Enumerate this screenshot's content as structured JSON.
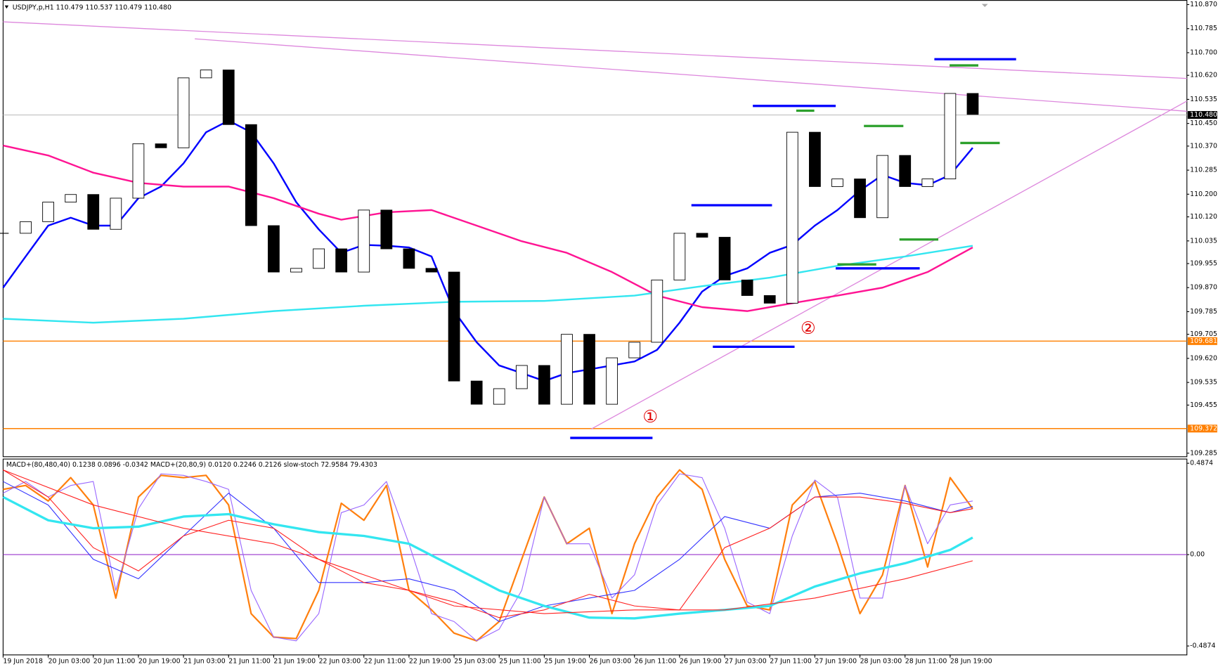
{
  "chart_data": [
    {
      "type": "candlestick",
      "title": "USDJPY,p,H1  110.479 110.537 110.479 110.480",
      "xlim": [
        0,
        210
      ],
      "xticks": [
        {
          "value": 0,
          "label": "19 Jun 2018"
        },
        {
          "value": 8,
          "label": "20 Jun 03:00"
        },
        {
          "value": 16,
          "label": "20 Jun 11:00"
        },
        {
          "value": 24,
          "label": "20 Jun 19:00"
        },
        {
          "value": 32,
          "label": "21 Jun 03:00"
        },
        {
          "value": 40,
          "label": "21 Jun 11:00"
        },
        {
          "value": 48,
          "label": "21 Jun 19:00"
        },
        {
          "value": 56,
          "label": "22 Jun 03:00"
        },
        {
          "value": 64,
          "label": "22 Jun 11:00"
        },
        {
          "value": 72,
          "label": "22 Jun 19:00"
        },
        {
          "value": 80,
          "label": "25 Jun 03:00"
        },
        {
          "value": 88,
          "label": "25 Jun 11:00"
        },
        {
          "value": 96,
          "label": "25 Jun 19:00"
        },
        {
          "value": 104,
          "label": "26 Jun 03:00"
        },
        {
          "value": 112,
          "label": "26 Jun 11:00"
        },
        {
          "value": 120,
          "label": "26 Jun 19:00"
        },
        {
          "value": 128,
          "label": "27 Jun 03:00"
        },
        {
          "value": 136,
          "label": "27 Jun 11:00"
        },
        {
          "value": 144,
          "label": "27 Jun 19:00"
        },
        {
          "value": 152,
          "label": "28 Jun 03:00"
        },
        {
          "value": 160,
          "label": "28 Jun 11:00"
        },
        {
          "value": 168,
          "label": "28 Jun 19:00"
        }
      ],
      "ylim": [
        109.274,
        110.886
      ],
      "yticks": [
        {
          "value": 110.87,
          "label": "110.870"
        },
        110.785,
        {
          "value": 110.7,
          "label": "110.700"
        },
        {
          "value": 110.62,
          "label": "110.620"
        },
        110.535,
        {
          "value": 110.45,
          "label": "110.450"
        },
        {
          "value": 110.37,
          "label": "110.370"
        },
        110.285,
        {
          "value": 110.2,
          "label": "110.200"
        },
        {
          "value": 110.12,
          "label": "110.120"
        },
        110.035,
        109.955,
        {
          "value": 109.87,
          "label": "109.870"
        },
        109.785,
        109.705,
        {
          "value": 109.62,
          "label": "109.620"
        },
        109.535,
        109.455,
        109.285
      ],
      "candle_up_color": "#ffffff",
      "candle_down_color": "#000000",
      "closes": {
        "x": [
          0,
          4,
          8,
          12,
          16,
          20,
          24,
          28,
          32,
          36,
          40,
          44,
          48,
          52,
          56,
          60,
          64,
          68,
          72,
          76,
          80,
          84,
          88,
          92,
          96,
          100,
          104,
          108,
          112,
          116,
          120,
          124,
          128,
          132,
          136,
          140,
          144,
          148,
          152,
          156,
          160,
          164,
          168,
          172
        ],
        "values": [
          110.062,
          110.103,
          110.172,
          110.199,
          110.076,
          110.186,
          110.378,
          110.364,
          110.611,
          110.639,
          110.446,
          110.089,
          109.925,
          109.938,
          110.007,
          109.925,
          110.144,
          110.007,
          109.938,
          109.925,
          109.54,
          109.458,
          109.513,
          109.595,
          109.458,
          109.705,
          109.458,
          109.622,
          109.677,
          109.897,
          110.062,
          110.048,
          109.897,
          109.842,
          109.815,
          110.419,
          110.227,
          110.254,
          110.117,
          110.337,
          110.227,
          110.254,
          110.556,
          110.482
        ]
      },
      "lines": [
        {
          "color": "#0000ff",
          "width": 2.2,
          "x": [
            0,
            4,
            8,
            12,
            16,
            20,
            24,
            28,
            32,
            36,
            40,
            44,
            48,
            52,
            56,
            60,
            64,
            68,
            72,
            76,
            80,
            84,
            88,
            92,
            96,
            100,
            104,
            108,
            112,
            116,
            120,
            124,
            128,
            132,
            136,
            140,
            144,
            148,
            152,
            156,
            160,
            164,
            168,
            172
          ],
          "values": [
            109.87,
            109.98,
            110.089,
            110.117,
            110.089,
            110.089,
            110.186,
            110.227,
            110.309,
            110.419,
            110.46,
            110.419,
            110.309,
            110.172,
            110.076,
            109.993,
            110.021,
            110.018,
            110.012,
            109.98,
            109.787,
            109.677,
            109.595,
            109.568,
            109.54,
            109.568,
            109.581,
            109.595,
            109.609,
            109.65,
            109.746,
            109.856,
            109.911,
            109.938,
            109.993,
            110.021,
            110.089,
            110.144,
            110.213,
            110.268,
            110.24,
            110.232,
            110.268,
            110.364
          ]
        },
        {
          "color": "#ff1493",
          "width": 2.2,
          "x": [
            0,
            8,
            16,
            24,
            32,
            40,
            48,
            56,
            60,
            68,
            76,
            84,
            92,
            100,
            108,
            116,
            124,
            132,
            140,
            148,
            156,
            164,
            172
          ],
          "values": [
            110.372,
            110.337,
            110.276,
            110.24,
            110.227,
            110.227,
            110.186,
            110.131,
            110.11,
            110.136,
            110.144,
            110.089,
            110.034,
            109.993,
            109.925,
            109.842,
            109.801,
            109.787,
            109.815,
            109.842,
            109.87,
            109.925,
            110.012
          ]
        },
        {
          "color": "#33e6f0",
          "width": 2.2,
          "x": [
            0,
            16,
            32,
            48,
            64,
            80,
            96,
            112,
            124,
            136,
            148,
            160,
            172
          ],
          "values": [
            109.76,
            109.746,
            109.76,
            109.787,
            109.806,
            109.82,
            109.823,
            109.842,
            109.875,
            109.905,
            109.947,
            109.98,
            110.018
          ]
        }
      ],
      "levels": [
        109.681,
        109.372
      ],
      "level_color": "#ff8000",
      "last_price": {
        "value": 110.48,
        "label": "110.480"
      },
      "trend_color": "#dd88dd",
      "trendlines": [
        {
          "x": [
            0,
            210
          ],
          "y": [
            110.809,
            110.609
          ]
        },
        {
          "x": [
            34,
            210
          ],
          "y": [
            110.749,
            110.493
          ]
        },
        {
          "x": [
            104.3,
            210
          ],
          "y": [
            109.37,
            110.529
          ]
        }
      ],
      "segments": [
        {
          "color": "#0000ff",
          "x": [
            100.6,
            115.2
          ],
          "value": 109.339
        },
        {
          "color": "#0000ff",
          "x": [
            125.9,
            140.4
          ],
          "value": 109.661
        },
        {
          "color": "#0000ff",
          "x": [
            122.1,
            136.4
          ],
          "value": 110.161
        },
        {
          "color": "#0000ff",
          "x": [
            133.0,
            147.7
          ],
          "value": 110.512
        },
        {
          "color": "#0000ff",
          "x": [
            165.2,
            179.7
          ],
          "value": 110.677
        },
        {
          "color": "#0000ff",
          "x": [
            147.7,
            162.6
          ],
          "value": 109.938
        },
        {
          "color": "#2ca02c",
          "x": [
            140.7,
            143.9
          ],
          "value": 110.495
        },
        {
          "color": "#2ca02c",
          "x": [
            152.7,
            159.7
          ],
          "value": 110.441
        },
        {
          "color": "#2ca02c",
          "x": [
            167.9,
            173.0
          ],
          "value": 110.655
        },
        {
          "color": "#2ca02c",
          "x": [
            169.8,
            176.8
          ],
          "value": 110.381
        },
        {
          "color": "#2ca02c",
          "x": [
            159.0,
            165.9
          ],
          "value": 110.04
        },
        {
          "color": "#2ca02c",
          "x": [
            148.0,
            154.9
          ],
          "value": 109.952
        }
      ],
      "annotations": [
        {
          "text": "①",
          "x": 114.8,
          "y": 109.411
        },
        {
          "text": "②",
          "x": 142.8,
          "y": 109.724
        }
      ],
      "annotation_color": "#e00000"
    },
    {
      "type": "line",
      "title": "MACD+(80,480,40) 0.1238 0.0896 -0.0342  MACD+(20,80,9) 0.0120 0.2246 0.2126  slow-stoch 72.9584 79.4303",
      "ylim": [
        -0.533,
        0.512
      ],
      "yticks": [
        0.4874,
        {
          "value": 0,
          "label": "0.00"
        },
        -0.4874
      ],
      "zero_line_color": "#9933cc",
      "series": [
        {
          "color": "#ff7f0e",
          "width": 2,
          "x": [
            0,
            4,
            8,
            12,
            16,
            20,
            24,
            28,
            32,
            36,
            40,
            44,
            48,
            52,
            56,
            60,
            64,
            68,
            72,
            76,
            80,
            84,
            88,
            92,
            96,
            100,
            104,
            108,
            112,
            116,
            120,
            124,
            128,
            132,
            136,
            140,
            144,
            148,
            152,
            156,
            160,
            164,
            168,
            172
          ],
          "values": [
            0.348,
            0.369,
            0.286,
            0.411,
            0.265,
            -0.232,
            0.307,
            0.423,
            0.411,
            0.423,
            0.265,
            -0.315,
            -0.44,
            -0.448,
            -0.191,
            0.274,
            0.183,
            0.369,
            -0.191,
            -0.295,
            -0.419,
            -0.46,
            -0.357,
            -0.025,
            0.307,
            0.058,
            0.141,
            -0.315,
            0.058,
            0.307,
            0.452,
            0.348,
            -0.025,
            -0.274,
            -0.295,
            0.265,
            0.39,
            0.058,
            -0.315,
            -0.108,
            0.369,
            -0.066,
            0.411,
            0.245
          ]
        },
        {
          "color": "#9966ff",
          "width": 1,
          "x": [
            0,
            4,
            8,
            12,
            16,
            20,
            24,
            28,
            32,
            36,
            40,
            44,
            48,
            52,
            56,
            60,
            64,
            68,
            72,
            76,
            80,
            84,
            88,
            92,
            96,
            100,
            104,
            108,
            112,
            116,
            120,
            124,
            128,
            132,
            136,
            140,
            144,
            148,
            152,
            156,
            160,
            164,
            168,
            172
          ],
          "values": [
            0.328,
            0.39,
            0.307,
            0.369,
            0.39,
            -0.191,
            0.245,
            0.431,
            0.423,
            0.39,
            0.348,
            -0.191,
            -0.44,
            -0.46,
            -0.315,
            0.224,
            0.265,
            0.39,
            0.058,
            -0.315,
            -0.357,
            -0.46,
            -0.398,
            -0.191,
            0.307,
            0.058,
            0.058,
            -0.232,
            -0.108,
            0.265,
            0.431,
            0.411,
            0.141,
            -0.253,
            -0.315,
            0.1,
            0.398,
            0.307,
            -0.232,
            -0.232,
            0.369,
            0.058,
            0.265,
            0.286
          ]
        },
        {
          "color": "#3333ff",
          "width": 1,
          "x": [
            0,
            8,
            16,
            24,
            32,
            40,
            48,
            56,
            64,
            72,
            80,
            88,
            96,
            104,
            112,
            120,
            128,
            136,
            144,
            152,
            160,
            168,
            172
          ],
          "values": [
            0.39,
            0.265,
            -0.025,
            -0.129,
            0.1,
            0.328,
            0.141,
            -0.149,
            -0.149,
            -0.129,
            -0.191,
            -0.357,
            -0.274,
            -0.232,
            -0.191,
            -0.025,
            0.203,
            0.141,
            0.307,
            0.328,
            0.286,
            0.224,
            0.257
          ]
        },
        {
          "color": "#ff2020",
          "width": 1,
          "x": [
            0,
            8,
            16,
            24,
            32,
            40,
            48,
            56,
            64,
            72,
            80,
            88,
            96,
            104,
            112,
            120,
            128,
            136,
            144,
            152,
            160,
            168,
            172
          ],
          "values": [
            0.452,
            0.307,
            0.037,
            -0.087,
            0.1,
            0.183,
            0.141,
            -0.025,
            -0.149,
            -0.191,
            -0.253,
            -0.336,
            -0.295,
            -0.212,
            -0.274,
            -0.295,
            0.037,
            0.141,
            0.307,
            0.307,
            0.274,
            0.224,
            0.245
          ]
        },
        {
          "color": "#33e6f0",
          "width": 3,
          "x": [
            0,
            8,
            16,
            24,
            32,
            40,
            48,
            56,
            64,
            72,
            80,
            88,
            96,
            104,
            112,
            120,
            128,
            136,
            144,
            152,
            160,
            168,
            172
          ],
          "values": [
            0.307,
            0.183,
            0.141,
            0.149,
            0.203,
            0.216,
            0.162,
            0.12,
            0.1,
            0.058,
            -0.066,
            -0.191,
            -0.274,
            -0.336,
            -0.34,
            -0.315,
            -0.295,
            -0.274,
            -0.17,
            -0.1,
            -0.046,
            0.025,
            0.091
          ]
        },
        {
          "color": "#ff2020",
          "width": 1,
          "x": [
            0,
            16,
            32,
            48,
            64,
            80,
            96,
            112,
            128,
            144,
            160,
            172
          ],
          "values": [
            0.452,
            0.265,
            0.141,
            0.058,
            -0.108,
            -0.274,
            -0.315,
            -0.295,
            -0.295,
            -0.232,
            -0.129,
            -0.033
          ]
        }
      ]
    }
  ]
}
